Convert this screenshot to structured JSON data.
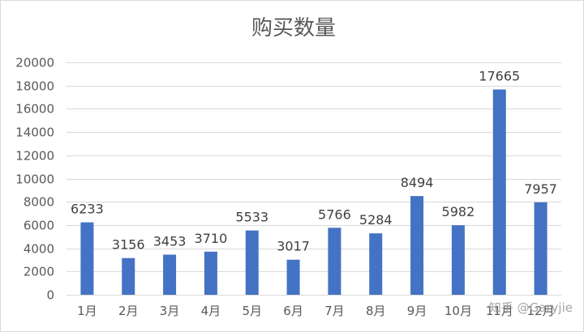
{
  "chart_data": {
    "type": "bar",
    "title": "购买数量",
    "categories": [
      "1月",
      "2月",
      "3月",
      "4月",
      "5月",
      "6月",
      "7月",
      "8月",
      "9月",
      "10月",
      "11月",
      "12月"
    ],
    "values": [
      6233,
      3156,
      3453,
      3710,
      5533,
      3017,
      5766,
      5284,
      8494,
      5982,
      17665,
      7957
    ],
    "ylim": [
      0,
      20000
    ],
    "yticks": [
      0,
      2000,
      4000,
      6000,
      8000,
      10000,
      12000,
      14000,
      16000,
      18000,
      20000
    ],
    "grid": true,
    "data_labels": true,
    "legend": "none",
    "bar_color": "#4472c4"
  },
  "watermark": "知乎 @Garyjie"
}
